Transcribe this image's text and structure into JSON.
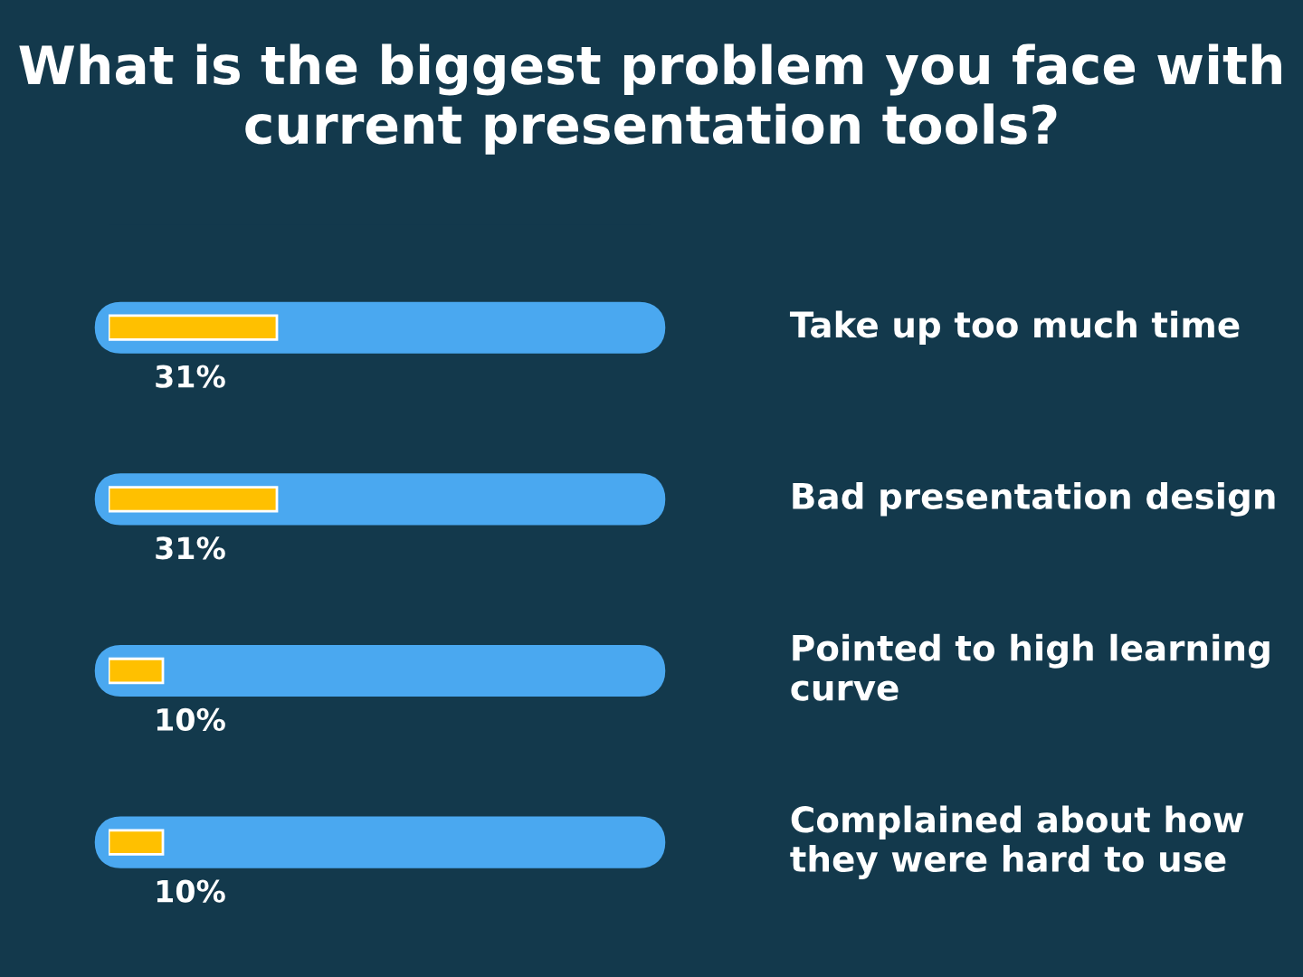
{
  "chart_data": {
    "type": "bar",
    "orientation": "horizontal",
    "title": "What is the biggest problem you face with current presentation tools?",
    "categories": [
      "Take up too much time",
      "Bad presentation design",
      "Pointed to high learning curve",
      "Complained about how they were hard to use"
    ],
    "values": [
      31,
      31,
      10,
      10
    ],
    "value_labels": [
      "31%",
      "31%",
      "10%",
      "10%"
    ],
    "color": "#ffc000",
    "xlim": [
      0,
      100
    ],
    "tick_labels": "y",
    "legend": false
  }
}
